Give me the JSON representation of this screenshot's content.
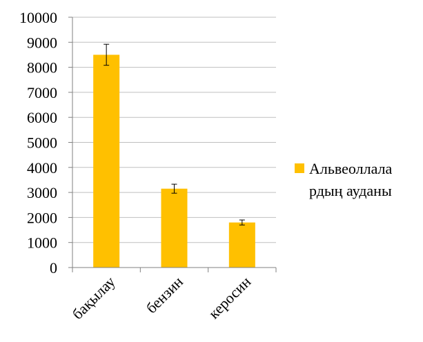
{
  "chart_data": {
    "type": "bar",
    "categories": [
      "бақылау",
      "бензин",
      "керосин"
    ],
    "series": [
      {
        "name": "Альвеоллаларрдың ауданы",
        "values": [
          8500,
          3150,
          1800
        ],
        "error": [
          420,
          180,
          100
        ]
      }
    ],
    "ylim": [
      0,
      10000
    ],
    "yticks": [
      0,
      1000,
      2000,
      3000,
      4000,
      5000,
      6000,
      7000,
      8000,
      9000,
      10000
    ],
    "grid": true,
    "legend_position": "right",
    "legend_lines": [
      "Альвеоллала",
      "рдың ауданы"
    ],
    "bar_color": "#FFC000",
    "grid_color": "#BFBFBF",
    "axis_color": "#808080"
  }
}
